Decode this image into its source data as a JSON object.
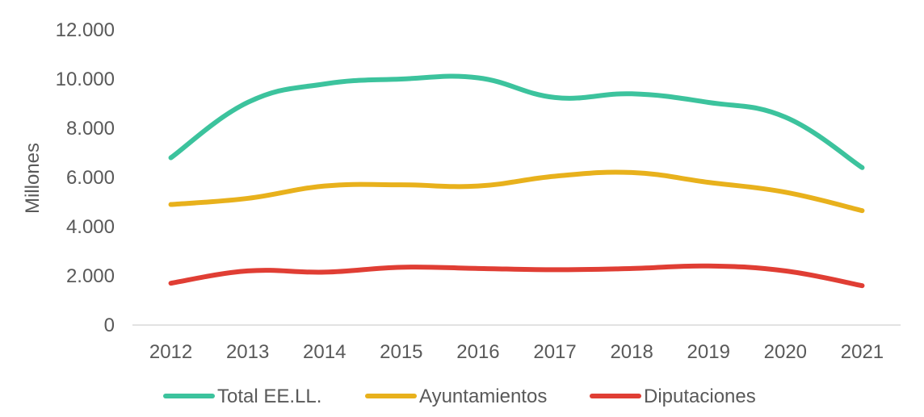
{
  "chart_data": {
    "type": "line",
    "title": "",
    "xlabel": "",
    "ylabel": "Millones",
    "ylim": [
      0,
      12000
    ],
    "y_ticks": [
      "0",
      "2.000",
      "4.000",
      "6.000",
      "8.000",
      "10.000",
      "12.000"
    ],
    "grid": false,
    "legend_position": "bottom",
    "categories": [
      "2012",
      "2013",
      "2014",
      "2015",
      "2016",
      "2017",
      "2018",
      "2019",
      "2020",
      "2021"
    ],
    "series": [
      {
        "name": "Total EE.LL.",
        "color": "#3CC39D",
        "values": [
          6800,
          9050,
          9800,
          10000,
          10050,
          9250,
          9400,
          9050,
          8450,
          6400
        ]
      },
      {
        "name": "Ayuntamientos",
        "color": "#E8B11C",
        "values": [
          4900,
          5150,
          5650,
          5700,
          5650,
          6050,
          6200,
          5800,
          5400,
          4650
        ]
      },
      {
        "name": "Diputaciones",
        "color": "#E03E34",
        "values": [
          1700,
          2200,
          2150,
          2350,
          2300,
          2250,
          2300,
          2400,
          2200,
          1600
        ]
      }
    ]
  }
}
